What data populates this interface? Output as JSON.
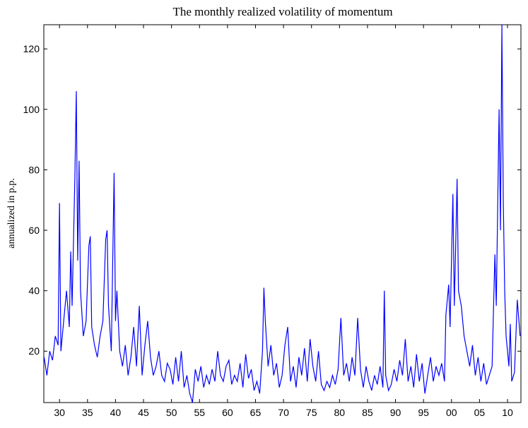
{
  "chart_data": {
    "type": "line",
    "title": "The monthly realized volatility of momentum",
    "y_label": "annualized in p.p.",
    "color": "#0000ff",
    "xlim": [
      1927.2,
      2012.4
    ],
    "ylim": [
      3,
      128
    ],
    "xticks": [
      {
        "value": 1930,
        "label": "30"
      },
      {
        "value": 1935,
        "label": "35"
      },
      {
        "value": 1940,
        "label": "40"
      },
      {
        "value": 1945,
        "label": "45"
      },
      {
        "value": 1950,
        "label": "50"
      },
      {
        "value": 1955,
        "label": "55"
      },
      {
        "value": 1960,
        "label": "60"
      },
      {
        "value": 1965,
        "label": "65"
      },
      {
        "value": 1970,
        "label": "70"
      },
      {
        "value": 1975,
        "label": "75"
      },
      {
        "value": 1980,
        "label": "80"
      },
      {
        "value": 1985,
        "label": "85"
      },
      {
        "value": 1990,
        "label": "90"
      },
      {
        "value": 1995,
        "label": "95"
      },
      {
        "value": 2000,
        "label": "00"
      },
      {
        "value": 2005,
        "label": "05"
      },
      {
        "value": 2010,
        "label": "10"
      }
    ],
    "yticks": [
      20,
      40,
      60,
      80,
      100,
      120
    ],
    "x": [
      1927.25,
      1927.75,
      1928.25,
      1928.75,
      1929.25,
      1929.75,
      1930.0,
      1930.25,
      1930.75,
      1931.25,
      1931.75,
      1932.0,
      1932.25,
      1932.75,
      1933.0,
      1933.25,
      1933.5,
      1933.75,
      1934.25,
      1934.75,
      1935.25,
      1935.5,
      1935.75,
      1936.25,
      1936.75,
      1937.25,
      1937.75,
      1938.25,
      1938.5,
      1938.75,
      1939.25,
      1939.75,
      1940.0,
      1940.25,
      1940.75,
      1941.25,
      1941.75,
      1942.25,
      1942.75,
      1943.25,
      1943.75,
      1944.25,
      1944.75,
      1945.25,
      1945.75,
      1946.25,
      1946.75,
      1947.25,
      1947.75,
      1948.25,
      1948.75,
      1949.25,
      1949.75,
      1950.25,
      1950.75,
      1951.25,
      1951.75,
      1952.25,
      1952.75,
      1953.25,
      1953.75,
      1954.25,
      1954.75,
      1955.25,
      1955.75,
      1956.25,
      1956.75,
      1957.25,
      1957.75,
      1958.25,
      1958.75,
      1959.25,
      1959.75,
      1960.25,
      1960.75,
      1961.25,
      1961.75,
      1962.25,
      1962.75,
      1963.25,
      1963.75,
      1964.25,
      1964.75,
      1965.25,
      1965.75,
      1966.25,
      1966.5,
      1966.75,
      1967.25,
      1967.75,
      1968.25,
      1968.75,
      1969.25,
      1969.75,
      1970.25,
      1970.75,
      1971.25,
      1971.75,
      1972.25,
      1972.75,
      1973.25,
      1973.75,
      1974.25,
      1974.75,
      1975.25,
      1975.75,
      1976.25,
      1976.75,
      1977.25,
      1977.75,
      1978.25,
      1978.75,
      1979.25,
      1979.75,
      1980.25,
      1980.75,
      1981.25,
      1981.75,
      1982.25,
      1982.75,
      1983.25,
      1983.75,
      1984.25,
      1984.75,
      1985.25,
      1985.75,
      1986.25,
      1986.75,
      1987.25,
      1987.75,
      1988.0,
      1988.25,
      1988.75,
      1989.25,
      1989.75,
      1990.25,
      1990.75,
      1991.25,
      1991.75,
      1992.25,
      1992.75,
      1993.25,
      1993.75,
      1994.25,
      1994.75,
      1995.25,
      1995.75,
      1996.25,
      1996.75,
      1997.25,
      1997.75,
      1998.25,
      1998.75,
      1999.0,
      1999.5,
      1999.75,
      2000.25,
      2000.5,
      2000.75,
      2001.0,
      2001.25,
      2001.75,
      2002.25,
      2002.75,
      2003.25,
      2003.75,
      2004.25,
      2004.75,
      2005.25,
      2005.75,
      2006.25,
      2006.75,
      2007.25,
      2007.75,
      2008.0,
      2008.5,
      2008.75,
      2009.0,
      2009.25,
      2009.5,
      2009.75,
      2010.25,
      2010.5,
      2010.75,
      2011.25,
      2011.75,
      2012.25
    ],
    "values": [
      18,
      12,
      20,
      17,
      25,
      22,
      69,
      20,
      30,
      40,
      28,
      53,
      35,
      78,
      106,
      50,
      83,
      40,
      25,
      30,
      55,
      58,
      28,
      22,
      18,
      25,
      30,
      57,
      60,
      35,
      20,
      79,
      30,
      40,
      20,
      15,
      22,
      12,
      18,
      28,
      15,
      35,
      12,
      22,
      30,
      18,
      12,
      15,
      20,
      12,
      10,
      16,
      14,
      9,
      18,
      10,
      20,
      8,
      12,
      6,
      3,
      14,
      10,
      15,
      8,
      12,
      9,
      14,
      10,
      20,
      12,
      10,
      15,
      17,
      9,
      12,
      10,
      16,
      8,
      19,
      11,
      14,
      7,
      10,
      6,
      20,
      41,
      30,
      15,
      22,
      12,
      16,
      8,
      12,
      22,
      28,
      10,
      15,
      8,
      18,
      12,
      21,
      10,
      24,
      15,
      10,
      20,
      9,
      7,
      10,
      8,
      12,
      9,
      14,
      31,
      12,
      16,
      10,
      18,
      12,
      31,
      14,
      8,
      15,
      10,
      7,
      12,
      9,
      15,
      8,
      40,
      12,
      7,
      9,
      14,
      10,
      17,
      12,
      24,
      10,
      15,
      8,
      19,
      10,
      16,
      6,
      12,
      18,
      10,
      15,
      12,
      16,
      10,
      32,
      42,
      28,
      72,
      35,
      55,
      77,
      40,
      35,
      25,
      20,
      15,
      22,
      12,
      18,
      10,
      16,
      9,
      12,
      15,
      52,
      35,
      100,
      60,
      128,
      70,
      40,
      25,
      15,
      29,
      10,
      13,
      37,
      25
    ]
  }
}
